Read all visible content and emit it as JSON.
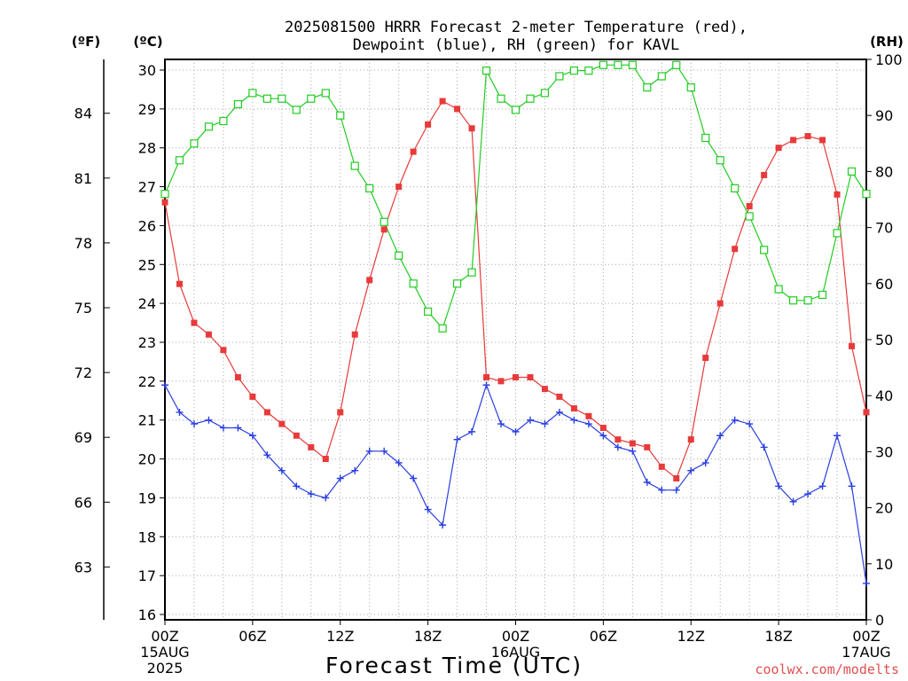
{
  "chart_data": {
    "type": "line",
    "title_lines": [
      "2025081500 HRRR Forecast 2-meter Temperature (red),",
      "Dewpoint (blue), RH (green) for KAVL"
    ],
    "xlabel": "Forecast Time (UTC)",
    "credit": "coolwx.com/modelts",
    "unit_labels": {
      "fahrenheit": "(ºF)",
      "celsius": "(ºC)",
      "rh": "(RH)"
    },
    "x_range_hours": [
      0,
      48
    ],
    "x_ticks": [
      {
        "h": 0,
        "lines": [
          "00Z",
          "15AUG",
          "2025"
        ]
      },
      {
        "h": 6,
        "lines": [
          "06Z"
        ]
      },
      {
        "h": 12,
        "lines": [
          "12Z"
        ]
      },
      {
        "h": 18,
        "lines": [
          "18Z"
        ]
      },
      {
        "h": 24,
        "lines": [
          "00Z",
          "16AUG"
        ]
      },
      {
        "h": 30,
        "lines": [
          "06Z"
        ]
      },
      {
        "h": 36,
        "lines": [
          "12Z"
        ]
      },
      {
        "h": 42,
        "lines": [
          "18Z"
        ]
      },
      {
        "h": 48,
        "lines": [
          "00Z",
          "17AUG"
        ]
      }
    ],
    "y_celsius": {
      "range": [
        16,
        30
      ],
      "ticks": [
        16,
        17,
        18,
        19,
        20,
        21,
        22,
        23,
        24,
        25,
        26,
        27,
        28,
        29,
        30
      ]
    },
    "y_fahrenheit": {
      "ticks": [
        63,
        66,
        69,
        72,
        75,
        78,
        81,
        84
      ]
    },
    "y_rh": {
      "range": [
        0,
        100
      ],
      "ticks": [
        0,
        10,
        20,
        30,
        40,
        50,
        60,
        70,
        80,
        90,
        100
      ]
    },
    "grid": true,
    "colors": {
      "temperature": "#e83a3a",
      "dewpoint": "#2a3fe0",
      "rh": "#22cc22"
    },
    "hours": [
      0,
      1,
      2,
      3,
      4,
      5,
      6,
      7,
      8,
      9,
      10,
      11,
      12,
      13,
      14,
      15,
      16,
      17,
      18,
      19,
      20,
      21,
      22,
      23,
      24,
      25,
      26,
      27,
      28,
      29,
      30,
      31,
      32,
      33,
      34,
      35,
      36,
      37,
      38,
      39,
      40,
      41,
      42,
      43,
      44,
      45,
      46,
      47,
      48
    ],
    "series": [
      {
        "key": "temperature",
        "units": "C",
        "marker": "filled-square",
        "values": [
          26.6,
          24.5,
          23.5,
          23.2,
          22.8,
          22.1,
          21.6,
          21.2,
          20.9,
          20.6,
          20.3,
          20.0,
          21.2,
          23.2,
          24.6,
          25.9,
          27.0,
          27.9,
          28.6,
          29.2,
          29.0,
          28.5,
          22.1,
          22.0,
          22.1,
          22.1,
          21.8,
          21.6,
          21.3,
          21.1,
          20.8,
          20.5,
          20.4,
          20.3,
          19.8,
          19.5,
          20.5,
          22.6,
          24.0,
          25.4,
          26.5,
          27.3,
          28.0,
          28.2,
          28.3,
          28.2,
          26.8,
          22.9,
          21.2
        ]
      },
      {
        "key": "dewpoint",
        "units": "C",
        "marker": "plus",
        "values": [
          21.9,
          21.2,
          20.9,
          21.0,
          20.8,
          20.8,
          20.6,
          20.1,
          19.7,
          19.3,
          19.1,
          19.0,
          19.5,
          19.7,
          20.2,
          20.2,
          19.9,
          19.5,
          18.7,
          18.3,
          20.5,
          20.7,
          21.9,
          20.9,
          20.7,
          21.0,
          20.9,
          21.2,
          21.0,
          20.9,
          20.6,
          20.3,
          20.2,
          19.4,
          19.2,
          19.2,
          19.7,
          19.9,
          20.6,
          21.0,
          20.9,
          20.3,
          19.3,
          18.9,
          19.1,
          19.3,
          20.6,
          19.3,
          16.8
        ]
      },
      {
        "key": "rh",
        "units": "%",
        "marker": "open-square",
        "values": [
          76,
          82,
          85,
          88,
          89,
          92,
          94,
          93,
          93,
          91,
          93,
          94,
          90,
          81,
          77,
          71,
          65,
          60,
          55,
          52,
          60,
          62,
          98,
          93,
          91,
          93,
          94,
          97,
          98,
          98,
          99,
          99,
          99,
          95,
          97,
          99,
          95,
          86,
          82,
          77,
          72,
          66,
          59,
          57,
          57,
          58,
          69,
          80,
          76
        ]
      }
    ]
  }
}
